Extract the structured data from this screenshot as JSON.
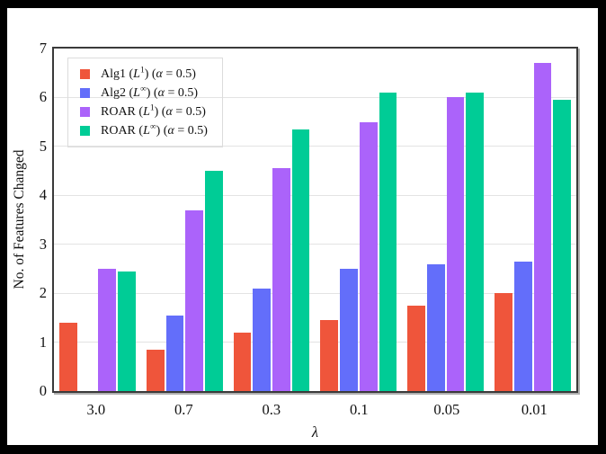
{
  "chart_data": {
    "type": "bar",
    "title": "",
    "xlabel": "λ",
    "ylabel": "No. of Features Changed",
    "categories": [
      "3.0",
      "0.7",
      "0.3",
      "0.1",
      "0.05",
      "0.01"
    ],
    "series": [
      {
        "name": "Alg1 (L1) (α = 0.5)",
        "color": "#EF553B",
        "values": [
          1.4,
          0.85,
          1.2,
          1.45,
          1.75,
          2.0
        ]
      },
      {
        "name": "Alg2 (L∞) (α = 0.5)",
        "color": "#636EFA",
        "values": [
          0.0,
          1.55,
          2.1,
          2.5,
          2.6,
          2.65
        ]
      },
      {
        "name": "ROAR (L1) (α = 0.5)",
        "color": "#AB63FA",
        "values": [
          2.5,
          3.7,
          4.55,
          5.5,
          6.0,
          6.7
        ]
      },
      {
        "name": "ROAR (L∞) (α = 0.5)",
        "color": "#00CC96",
        "values": [
          2.45,
          4.5,
          5.35,
          6.1,
          6.1,
          5.95
        ]
      }
    ],
    "ylim": [
      0,
      7
    ],
    "yticks": [
      0,
      1,
      2,
      3,
      4,
      5,
      6,
      7
    ],
    "grid": "horizontal-light",
    "legend_position": "top-left",
    "frame_color": "#3a3a3a",
    "grid_color": "#e3e3e3",
    "background": "#ffffff",
    "outer_border": "#000000"
  },
  "legend": {
    "items": [
      {
        "pre": "Alg1 (",
        "base": "L",
        "sup": "1",
        "mid": ") (",
        "alpha": "α",
        "post": " = 0.5)",
        "color": "#EF553B"
      },
      {
        "pre": "Alg2 (",
        "base": "L",
        "sup": "∞",
        "mid": ") (",
        "alpha": "α",
        "post": " = 0.5)",
        "color": "#636EFA"
      },
      {
        "pre": "ROAR (",
        "base": "L",
        "sup": "1",
        "mid": ") (",
        "alpha": "α",
        "post": " = 0.5)",
        "color": "#AB63FA"
      },
      {
        "pre": "ROAR (",
        "base": "L",
        "sup": "∞",
        "mid": ") (",
        "alpha": "α",
        "post": " = 0.5)",
        "color": "#00CC96"
      }
    ]
  }
}
